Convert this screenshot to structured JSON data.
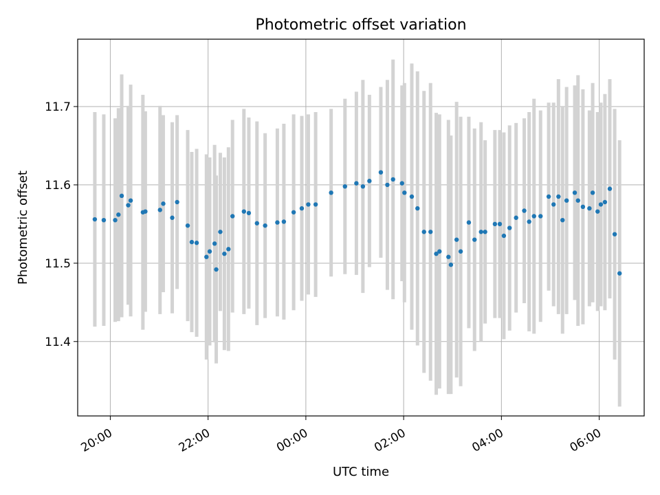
{
  "chart_data": {
    "type": "scatter",
    "title": "Photometric offset variation",
    "xlabel": "UTC time",
    "ylabel": "Photometric offset",
    "grid": true,
    "x_range": [
      "19:20",
      "06:55"
    ],
    "x_day_rollover": "00:00",
    "xlim": [
      19.333,
      30.92
    ],
    "ylim": [
      11.305,
      11.786
    ],
    "x_ticks": [
      "20:00",
      "22:00",
      "00:00",
      "02:00",
      "04:00",
      "06:00"
    ],
    "y_ticks": [
      "11.4",
      "11.5",
      "11.6",
      "11.7"
    ],
    "colors": {
      "points": "#1f77b4",
      "errorbars": "#d3d3d3",
      "grid": "#b0b0b0"
    },
    "series": [
      {
        "x": [
          "19:41",
          "20:06",
          "20:10",
          "20:25",
          "20:43",
          "21:01",
          "21:22",
          "21:35",
          "21:46",
          "21:58",
          "22:02",
          "22:08",
          "22:15",
          "22:25",
          "22:30",
          "22:44",
          "23:10",
          "23:33",
          "23:55",
          "00:12",
          "00:31",
          "01:02",
          "01:18",
          "01:32",
          "01:47",
          "02:01",
          "02:17",
          "02:33",
          "02:44",
          "02:55",
          "03:10",
          "03:27",
          "03:40",
          "03:52",
          "04:03",
          "04:18",
          "04:34",
          "04:48",
          "05:04",
          "05:20",
          "05:34",
          "05:48",
          "05:58",
          "06:07",
          "06:19"
        ],
        "y": [
          11.556,
          11.555,
          11.562,
          11.58,
          11.566,
          11.568,
          11.578,
          11.548,
          11.526,
          11.508,
          11.515,
          11.525,
          11.54,
          11.518,
          11.56,
          11.566,
          11.548,
          11.553,
          11.57,
          11.575,
          11.59,
          11.602,
          11.605,
          11.616,
          11.607,
          11.59,
          11.57,
          11.54,
          11.515,
          11.508,
          11.515,
          11.53,
          11.54,
          11.55,
          11.535,
          11.558,
          11.553,
          11.56,
          11.575,
          11.58,
          11.58,
          11.57,
          11.566,
          11.578,
          11.537
        ],
        "err": [
          0.137,
          0.13,
          0.136,
          0.148,
          0.128,
          0.133,
          0.111,
          0.122,
          0.12,
          0.131,
          0.12,
          0.126,
          0.101,
          0.13,
          0.123,
          0.131,
          0.118,
          0.125,
          0.118,
          0.118,
          0.107,
          0.117,
          0.11,
          0.109,
          0.153,
          0.14,
          0.175,
          0.19,
          0.175,
          0.175,
          0.172,
          0.142,
          0.117,
          0.12,
          0.132,
          0.121,
          0.14,
          0.135,
          0.13,
          0.145,
          0.16,
          0.125,
          0.127,
          0.138,
          0.16
        ]
      },
      {
        "x": [
          "19:52",
          "20:14",
          "20:40",
          "21:05",
          "21:40",
          "22:10",
          "22:50",
          "23:25",
          "00:03",
          "00:48",
          "01:40",
          "02:10",
          "02:40",
          "03:05",
          "03:35",
          "04:10",
          "04:40",
          "05:10",
          "05:30",
          "05:52",
          "06:13"
        ],
        "y": [
          11.555,
          11.586,
          11.565,
          11.576,
          11.527,
          11.492,
          11.564,
          11.552,
          11.575,
          11.598,
          11.6,
          11.585,
          11.512,
          11.53,
          11.54,
          11.545,
          11.56,
          11.585,
          11.59,
          11.59,
          11.595
        ],
        "err": [
          0.135,
          0.155,
          0.15,
          0.113,
          0.115,
          0.12,
          0.122,
          0.12,
          0.115,
          0.112,
          0.134,
          0.17,
          0.18,
          0.176,
          0.14,
          0.131,
          0.15,
          0.15,
          0.137,
          0.14,
          0.14
        ]
      },
      {
        "x": [
          "20:22",
          "21:16",
          "22:20",
          "23:00",
          "23:45",
          "01:10",
          "01:58",
          "02:25",
          "02:58",
          "03:20",
          "03:58",
          "04:28",
          "04:58",
          "05:15",
          "05:40",
          "06:02",
          "06:25"
        ],
        "y": [
          11.574,
          11.558,
          11.512,
          11.551,
          11.565,
          11.598,
          11.602,
          11.54,
          11.498,
          11.552,
          11.55,
          11.567,
          11.585,
          11.555,
          11.572,
          11.575,
          11.487
        ],
        "err": [
          0.127,
          0.122,
          0.123,
          0.13,
          0.125,
          0.136,
          0.125,
          0.18,
          0.165,
          0.135,
          0.12,
          0.118,
          0.12,
          0.145,
          0.15,
          0.13,
          0.17
        ]
      }
    ]
  }
}
